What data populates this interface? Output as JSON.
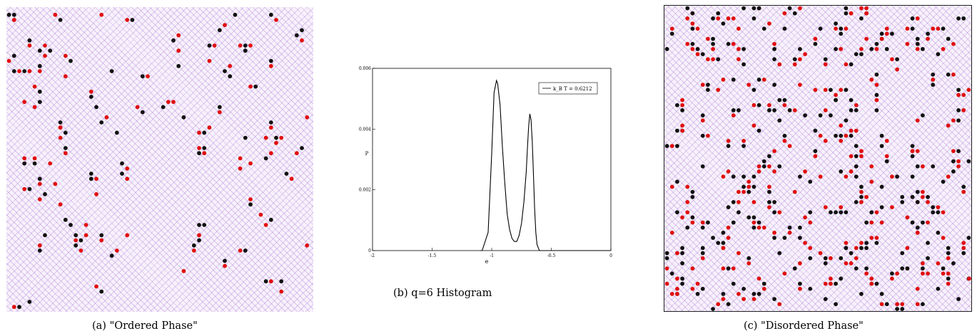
{
  "captions": {
    "a": "(a) \"Ordered Phase\"",
    "b": "(b) q=6 Histogram",
    "c": "(c) \"Disordered Phase\""
  },
  "lattice_a": {
    "description_colors": {
      "spin_lines": "#9a4fd0",
      "vortex": "#111111",
      "antivortex": "#e01010"
    },
    "defect_density": 0.028
  },
  "lattice_c": {
    "defect_density": 0.085
  },
  "chart_data": {
    "type": "line",
    "title": "",
    "xlabel": "e",
    "ylabel": "P",
    "xlim": [
      -2,
      0
    ],
    "ylim": [
      0,
      0.006
    ],
    "x_ticks": [
      "-2",
      "-1.5",
      "-1",
      "-0.5",
      "0"
    ],
    "y_ticks": [
      "0",
      "0.002",
      "0.004",
      "0.006"
    ],
    "y_tick_labels_shown": [
      "0",
      "0.002",
      "0.004",
      "0.005",
      "0.006"
    ],
    "legend": {
      "position": "top-right",
      "label": "k_B T = 0.6212"
    },
    "series": [
      {
        "name": "k_B T = 0.6212",
        "x": [
          -1.08,
          -1.03,
          -1.0,
          -0.98,
          -0.96,
          -0.95,
          -0.93,
          -0.91,
          -0.89,
          -0.87,
          -0.85,
          -0.83,
          -0.81,
          -0.79,
          -0.77,
          -0.75,
          -0.73,
          -0.71,
          -0.7,
          -0.69,
          -0.68,
          -0.67,
          -0.66,
          -0.65,
          -0.64,
          -0.63,
          -0.62,
          -0.61,
          -0.6
        ],
        "y": [
          0.0,
          0.0006,
          0.0032,
          0.0052,
          0.0056,
          0.0055,
          0.0048,
          0.0034,
          0.0022,
          0.0012,
          0.0007,
          0.0004,
          0.0003,
          0.0003,
          0.0005,
          0.0009,
          0.0016,
          0.0026,
          0.0034,
          0.0041,
          0.0045,
          0.0043,
          0.0036,
          0.0025,
          0.0014,
          0.0006,
          0.0002,
          0.0001,
          0.0
        ]
      }
    ]
  }
}
